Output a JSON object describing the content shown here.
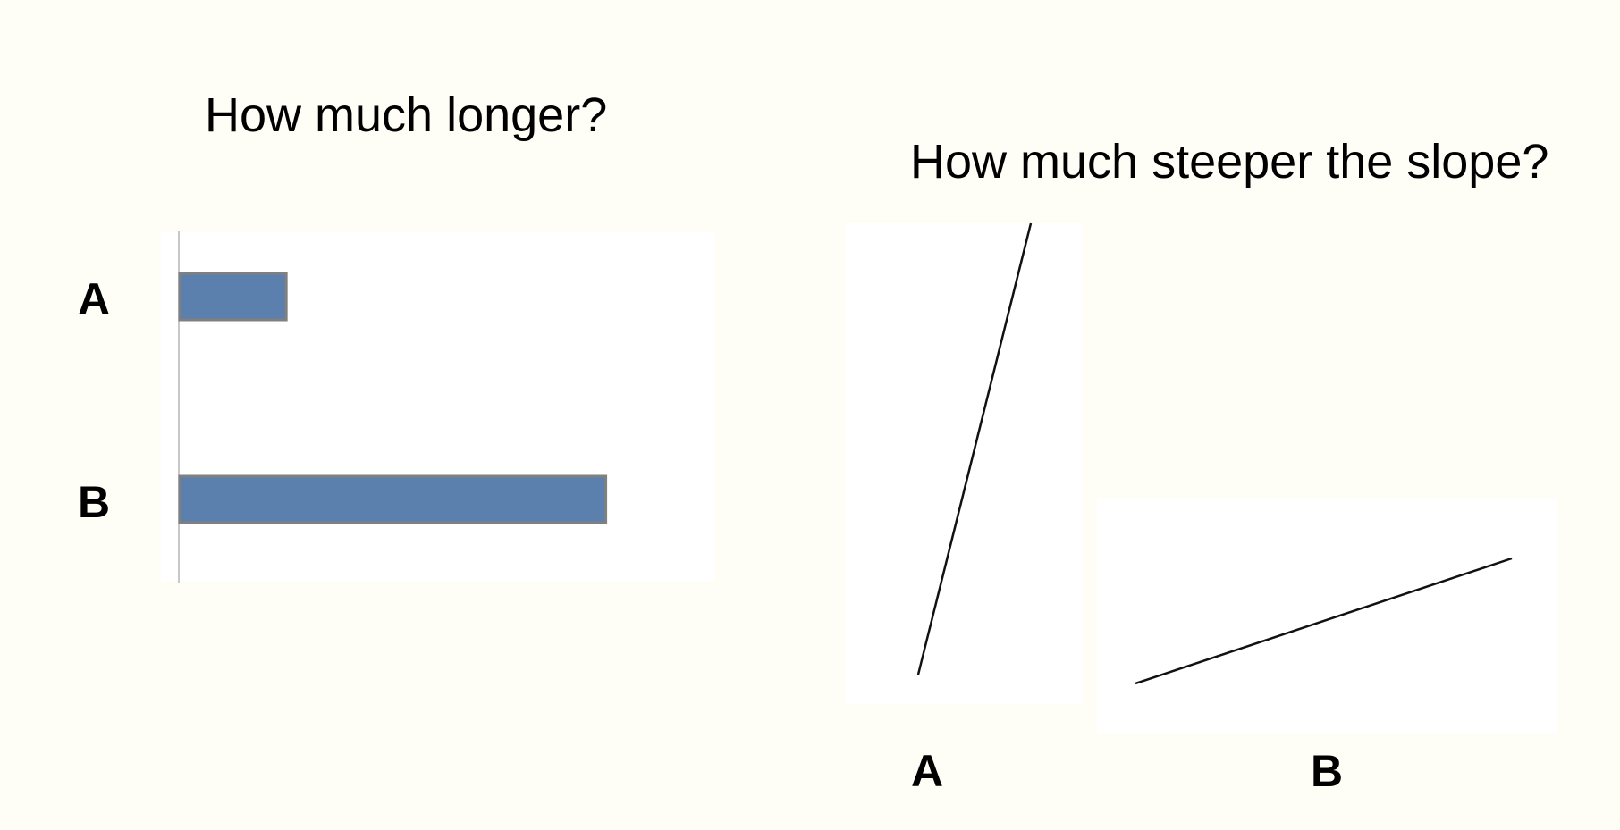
{
  "colors": {
    "background": "#fefdf6",
    "panel": "#ffffff",
    "bar_fill": "#5b80ae",
    "bar_stroke": "#808080",
    "axis": "#c8c8c8",
    "line": "#111111"
  },
  "chart_data": [
    {
      "type": "bar",
      "orientation": "horizontal",
      "title": "How much longer?",
      "categories": [
        "A",
        "B"
      ],
      "values": [
        1,
        4
      ],
      "xlabel": "",
      "ylabel": "",
      "xlim": [
        0,
        4.7
      ],
      "grid": false
    },
    {
      "type": "line",
      "title": "How much steeper the slope?",
      "series": [
        {
          "label": "A",
          "x": [
            0,
            1
          ],
          "y": [
            0,
            4.5
          ]
        },
        {
          "label": "B",
          "x": [
            0,
            1
          ],
          "y": [
            0,
            0.35
          ]
        }
      ],
      "xlabel": "",
      "ylabel": "",
      "grid": false
    }
  ]
}
